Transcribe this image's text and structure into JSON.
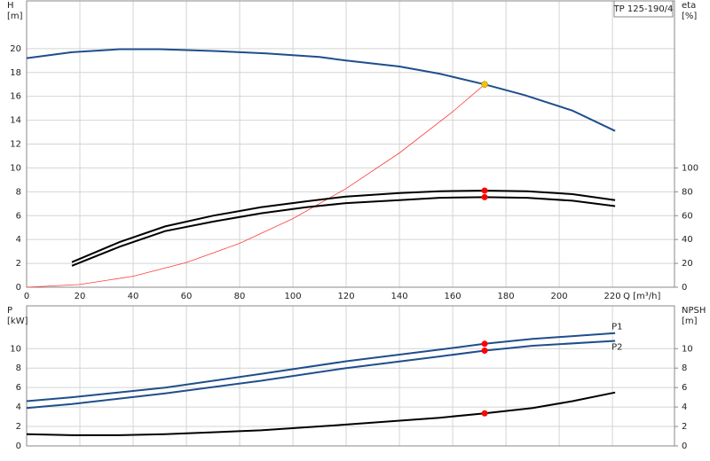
{
  "chart_data": [
    {
      "type": "line",
      "title": "TP 125-190/4",
      "xlabel": "Q [m³/h]",
      "ylabel": "H",
      "yunit": "[m]",
      "y2label": "eta",
      "y2unit": "[%]",
      "xlim": [
        0,
        243.3
      ],
      "xticks": [
        0,
        20,
        40,
        60,
        80,
        100,
        120,
        140,
        160,
        180,
        200,
        220
      ],
      "ylim": [
        0,
        24
      ],
      "yticks": [
        0,
        2,
        4,
        6,
        8,
        10,
        12,
        14,
        16,
        18,
        20
      ],
      "y2lim": [
        0,
        240
      ],
      "y2ticks": [
        0,
        20,
        40,
        60,
        80,
        100
      ],
      "grid": true,
      "series": [
        {
          "color": "#1f4e8c",
          "x": [
            0,
            17,
            35,
            50,
            70,
            90,
            110,
            120,
            140,
            155,
            172,
            187,
            205,
            221
          ],
          "values": [
            19.2,
            19.7,
            19.95,
            19.95,
            19.8,
            19.6,
            19.3,
            19.0,
            18.5,
            17.9,
            17.0,
            16.1,
            14.8,
            13.1
          ]
        },
        {
          "color": "#ff3b3b",
          "x": [
            0,
            20,
            40,
            60,
            80,
            100,
            120,
            140,
            160,
            172
          ],
          "values": [
            0,
            0.23,
            0.92,
            2.07,
            3.68,
            5.75,
            8.27,
            11.26,
            14.71,
            17.0
          ]
        },
        {
          "color": "#000000",
          "axis": "y2",
          "x": [
            17,
            35,
            52,
            70,
            88,
            105,
            120,
            140,
            155,
            172,
            188,
            205,
            221
          ],
          "values": [
            21,
            38,
            51,
            60,
            67,
            72,
            76,
            79,
            80.5,
            81,
            80.5,
            78,
            73
          ]
        },
        {
          "color": "#000000",
          "axis": "y2",
          "x": [
            17,
            35,
            52,
            70,
            88,
            105,
            120,
            140,
            155,
            172,
            188,
            205,
            221
          ],
          "values": [
            18,
            34,
            47,
            55,
            62,
            67,
            70.5,
            73,
            75,
            75.5,
            75,
            72.5,
            68
          ]
        }
      ],
      "markers": [
        {
          "x": 172,
          "value": 17.0,
          "color": "#f5c400"
        },
        {
          "x": 172,
          "value": 81,
          "color": "#ff0000",
          "axis": "y2"
        },
        {
          "x": 172,
          "value": 75.5,
          "color": "#ff0000",
          "axis": "y2"
        }
      ]
    },
    {
      "type": "line",
      "ylabel": "P",
      "yunit": "[kW]",
      "y2label": "NPSH",
      "y2unit": "[m]",
      "xlim": [
        0,
        243.3
      ],
      "xticks": [
        0,
        20,
        40,
        60,
        80,
        100,
        120,
        140,
        160,
        180,
        200,
        220
      ],
      "ylim": [
        0,
        14.4
      ],
      "yticks": [
        0,
        2,
        4,
        6,
        8,
        10
      ],
      "y2lim": [
        0,
        14.4
      ],
      "y2ticks": [
        0,
        2,
        4,
        6,
        8,
        10
      ],
      "grid": true,
      "series": [
        {
          "name": "P1",
          "color": "#1f4e8c",
          "x": [
            0,
            17,
            52,
            88,
            120,
            155,
            172,
            190,
            221
          ],
          "values": [
            4.6,
            5.0,
            6.0,
            7.4,
            8.7,
            9.9,
            10.5,
            11.0,
            11.6
          ]
        },
        {
          "name": "P2",
          "color": "#1f4e8c",
          "x": [
            0,
            17,
            52,
            88,
            120,
            155,
            172,
            190,
            221
          ],
          "values": [
            3.9,
            4.3,
            5.4,
            6.7,
            8.0,
            9.2,
            9.8,
            10.3,
            10.8
          ]
        },
        {
          "color": "#000000",
          "axis": "y2",
          "x": [
            0,
            17,
            35,
            52,
            88,
            120,
            155,
            172,
            190,
            205,
            221
          ],
          "values": [
            1.2,
            1.1,
            1.1,
            1.2,
            1.6,
            2.2,
            2.9,
            3.35,
            3.9,
            4.6,
            5.5
          ]
        }
      ],
      "markers": [
        {
          "x": 172,
          "value": 10.5,
          "color": "#ff0000"
        },
        {
          "x": 172,
          "value": 9.8,
          "color": "#ff0000"
        },
        {
          "x": 172,
          "value": 3.35,
          "color": "#ff0000",
          "axis": "y2"
        }
      ]
    }
  ]
}
